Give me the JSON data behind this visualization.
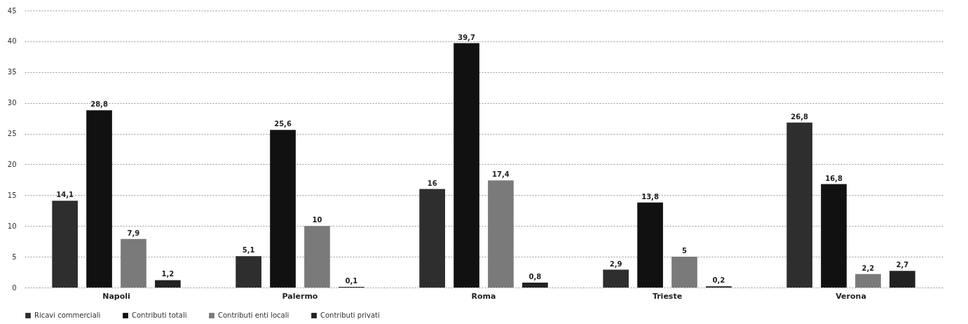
{
  "chart_data": {
    "type": "bar",
    "categories": [
      "Napoli",
      "Palermo",
      "Roma",
      "Trieste",
      "Verona"
    ],
    "series": [
      {
        "name": "Ricavi commerciali",
        "color": "#2e2e2e",
        "values": [
          14.1,
          5.1,
          16,
          2.9,
          26.8
        ],
        "value_labels": [
          "14,1",
          "5,1",
          "16",
          "2,9",
          "26,8"
        ]
      },
      {
        "name": "Contributi totali",
        "color": "#111111",
        "values": [
          28.8,
          25.6,
          39.7,
          13.8,
          16.8
        ],
        "value_labels": [
          "28,8",
          "25,6",
          "39,7",
          "13,8",
          "16,8"
        ]
      },
      {
        "name": "Contributi enti locali",
        "color": "#7a7a7a",
        "values": [
          7.9,
          10,
          17.4,
          5,
          2.2
        ],
        "value_labels": [
          "7,9",
          "10",
          "17,4",
          "5",
          "2,2"
        ]
      },
      {
        "name": "Contributi privati",
        "color": "#222222",
        "values": [
          1.2,
          0.1,
          0.8,
          0.2,
          2.7
        ],
        "value_labels": [
          "1,2",
          "0,1",
          "0,8",
          "0,2",
          "2,7"
        ]
      }
    ],
    "ylim": [
      0,
      45
    ],
    "yticks": [
      0,
      5,
      10,
      15,
      20,
      25,
      30,
      35,
      40,
      45
    ],
    "grid": "y",
    "legend": "bottom"
  }
}
